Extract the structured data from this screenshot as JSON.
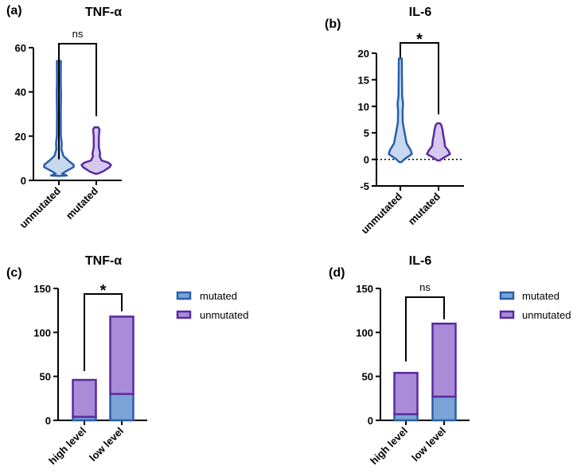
{
  "colors": {
    "mutated_fill": "#7ba3d6",
    "mutated_stroke": "#2a5ea8",
    "unmutated_fill": "#a98bd8",
    "unmutated_stroke": "#5a2aa0"
  },
  "chart_data": [
    {
      "panel": "(a)",
      "type": "violin",
      "title": "TNF-α",
      "categories": [
        "unmutated",
        "mutated"
      ],
      "yticks": [
        "0",
        "20",
        "40",
        "60"
      ],
      "ylim": [
        0,
        60
      ],
      "significance": "ns",
      "series": [
        {
          "name": "unmutated",
          "min": 2,
          "max": 54,
          "profile": [
            [
              2,
              0
            ],
            [
              2.2,
              0.5
            ],
            [
              3,
              0.15
            ],
            [
              4,
              0.4
            ],
            [
              6,
              1
            ],
            [
              7,
              1
            ],
            [
              9,
              0.6
            ],
            [
              11,
              0.25
            ],
            [
              14,
              0.1
            ],
            [
              17,
              0.12
            ],
            [
              20,
              0.06
            ],
            [
              30,
              0.05
            ],
            [
              39,
              0.07
            ],
            [
              45,
              0.05
            ],
            [
              54,
              0.06
            ]
          ]
        },
        {
          "name": "mutated",
          "min": 3,
          "max": 24,
          "profile": [
            [
              3,
              0
            ],
            [
              4,
              0.4
            ],
            [
              6,
              0.9
            ],
            [
              7,
              1
            ],
            [
              8,
              0.8
            ],
            [
              9,
              0.3
            ],
            [
              11,
              0.15
            ],
            [
              12,
              0.2
            ],
            [
              15,
              0.1
            ],
            [
              20,
              0.1
            ],
            [
              23,
              0.15
            ],
            [
              24,
              0.05
            ]
          ]
        }
      ]
    },
    {
      "panel": "(b)",
      "type": "violin",
      "title": "IL-6",
      "categories": [
        "unmutated",
        "mutated"
      ],
      "yticks": [
        "-5",
        "0",
        "5",
        "10",
        "15",
        "20"
      ],
      "ylim": [
        -5,
        20
      ],
      "reference_line": 0,
      "significance": "*",
      "series": [
        {
          "name": "unmutated",
          "min": -0.5,
          "max": 19,
          "profile": [
            [
              -0.5,
              0
            ],
            [
              0,
              0.25
            ],
            [
              1,
              1
            ],
            [
              1.7,
              0.9
            ],
            [
              3,
              0.5
            ],
            [
              5,
              0.3
            ],
            [
              7,
              0.12
            ],
            [
              9,
              0.1
            ],
            [
              10.5,
              0.15
            ],
            [
              12,
              0.06
            ],
            [
              16,
              0.04
            ],
            [
              19,
              0.03
            ]
          ]
        },
        {
          "name": "mutated",
          "min": -0.2,
          "max": 6.8,
          "profile": [
            [
              -0.2,
              0
            ],
            [
              0.4,
              0.45
            ],
            [
              1,
              1
            ],
            [
              1.6,
              0.85
            ],
            [
              2.5,
              0.5
            ],
            [
              3.5,
              0.45
            ],
            [
              4.5,
              0.35
            ],
            [
              5.5,
              0.28
            ],
            [
              6.5,
              0.15
            ],
            [
              6.8,
              0
            ]
          ]
        }
      ]
    },
    {
      "panel": "(c)",
      "type": "bar",
      "stacked": true,
      "title": "TNF-α",
      "categories": [
        "high level",
        "low level"
      ],
      "yticks": [
        "0",
        "50",
        "100",
        "150"
      ],
      "ylim": [
        0,
        150
      ],
      "significance": "*",
      "series": [
        {
          "name": "mutated",
          "values": [
            4,
            30
          ]
        },
        {
          "name": "unmutated",
          "values": [
            42,
            88
          ]
        }
      ],
      "legend": "right"
    },
    {
      "panel": "(d)",
      "type": "bar",
      "stacked": true,
      "title": "IL-6",
      "categories": [
        "high level",
        "low level"
      ],
      "yticks": [
        "0",
        "50",
        "100",
        "150"
      ],
      "ylim": [
        0,
        150
      ],
      "significance": "ns",
      "series": [
        {
          "name": "mutated",
          "values": [
            7,
            27
          ]
        },
        {
          "name": "unmutated",
          "values": [
            47,
            83
          ]
        }
      ],
      "legend": "right"
    }
  ]
}
